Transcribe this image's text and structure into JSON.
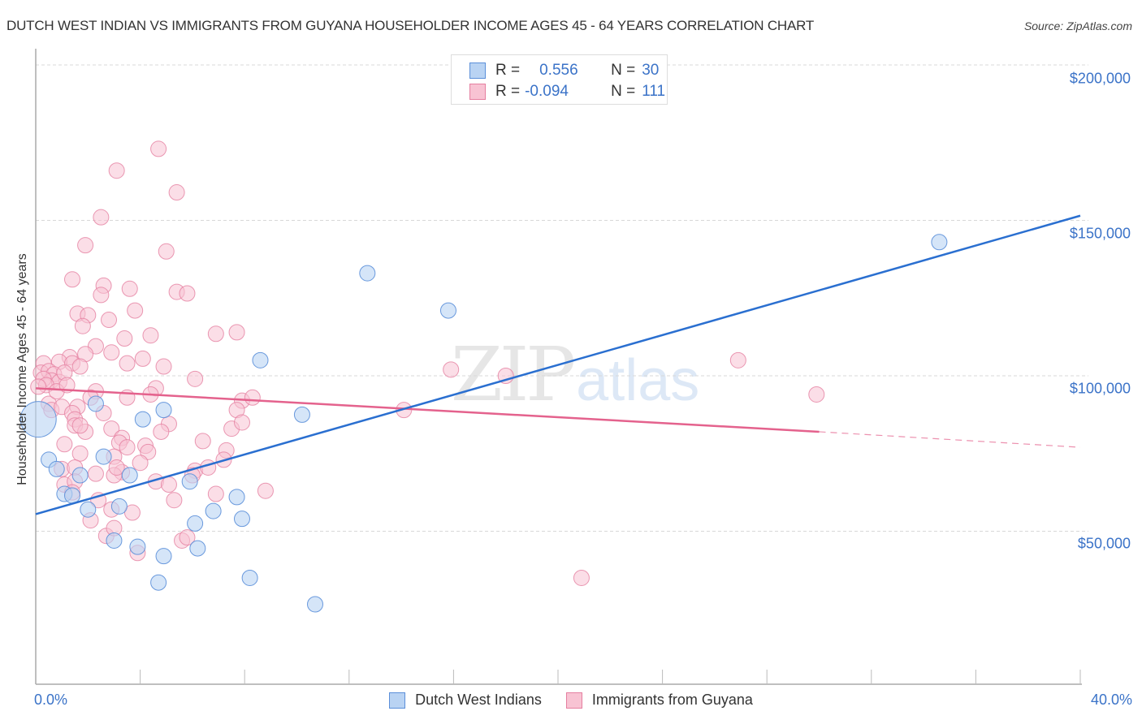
{
  "header": {
    "title": "DUTCH WEST INDIAN VS IMMIGRANTS FROM GUYANA HOUSEHOLDER INCOME AGES 45 - 64 YEARS CORRELATION CHART",
    "source": "Source: ZipAtlas.com"
  },
  "legend_top": {
    "rows": [
      {
        "r_label": "R =",
        "r_value": "0.556",
        "n_label": "N =",
        "n_value": "30"
      },
      {
        "r_label": "R =",
        "r_value": "-0.094",
        "n_label": "N =",
        "n_value": "111"
      }
    ]
  },
  "legend_bottom": {
    "items": [
      {
        "label": "Dutch West Indians"
      },
      {
        "label": "Immigrants from Guyana"
      }
    ]
  },
  "axes": {
    "ylabel": "Householder Income Ages 45 - 64 years",
    "yticks": [
      "$200,000",
      "$150,000",
      "$100,000",
      "$50,000"
    ],
    "xticks": [
      "0.0%",
      "40.0%"
    ]
  },
  "watermark": {
    "zip": "ZIP",
    "atlas": "atlas"
  },
  "colors": {
    "blue_fill": "#b9d3f3",
    "blue_stroke": "#5b8fd9",
    "blue_line": "#2a6fd0",
    "pink_fill": "#f8c3d3",
    "pink_stroke": "#e57fa0",
    "pink_line": "#e4628d",
    "tick_text": "#3b73c8"
  },
  "chart_data": {
    "type": "scatter",
    "title": "DUTCH WEST INDIAN VS IMMIGRANTS FROM GUYANA HOUSEHOLDER INCOME AGES 45 - 64 YEARS CORRELATION CHART",
    "xlabel": "",
    "ylabel": "Householder Income Ages 45 - 64 years",
    "xlim": [
      0,
      40
    ],
    "ylim": [
      0,
      210000
    ],
    "x_unit": "%",
    "yticks": [
      50000,
      100000,
      150000,
      200000
    ],
    "grid": true,
    "legend_position": "bottom",
    "series": [
      {
        "name": "Dutch West Indians",
        "R": 0.556,
        "N": 30,
        "trend": {
          "x": [
            0,
            40
          ],
          "y": [
            55500,
            151500
          ]
        },
        "points": [
          [
            0.1,
            86000
          ],
          [
            0.5,
            73000
          ],
          [
            0.8,
            70000
          ],
          [
            1.1,
            62000
          ],
          [
            1.4,
            61500
          ],
          [
            1.7,
            68000
          ],
          [
            2.0,
            57000
          ],
          [
            2.3,
            91000
          ],
          [
            2.6,
            74000
          ],
          [
            3.0,
            47000
          ],
          [
            3.2,
            58000
          ],
          [
            3.6,
            68000
          ],
          [
            3.9,
            45000
          ],
          [
            4.1,
            86000
          ],
          [
            4.9,
            89000
          ],
          [
            4.7,
            33500
          ],
          [
            4.9,
            42000
          ],
          [
            5.9,
            66000
          ],
          [
            6.1,
            52500
          ],
          [
            6.2,
            44500
          ],
          [
            6.8,
            56500
          ],
          [
            7.7,
            61000
          ],
          [
            7.9,
            54000
          ],
          [
            8.2,
            35000
          ],
          [
            8.6,
            105000
          ],
          [
            10.2,
            87500
          ],
          [
            10.7,
            26500
          ],
          [
            12.7,
            133000
          ],
          [
            15.8,
            121000
          ],
          [
            34.6,
            143000
          ]
        ]
      },
      {
        "name": "Immigrants from Guyana",
        "R": -0.094,
        "N": 111,
        "trend": {
          "x": [
            0,
            30
          ],
          "y": [
            96000,
            82000
          ]
        },
        "trend_dashed_extension": {
          "x": [
            30,
            40
          ],
          "y": [
            82000,
            77000
          ]
        },
        "points": [
          [
            4.7,
            173000
          ],
          [
            3.1,
            166000
          ],
          [
            5.4,
            159000
          ],
          [
            2.5,
            151000
          ],
          [
            1.9,
            142000
          ],
          [
            5.0,
            140000
          ],
          [
            1.4,
            131000
          ],
          [
            2.6,
            129000
          ],
          [
            3.6,
            128000
          ],
          [
            5.4,
            127000
          ],
          [
            5.8,
            126500
          ],
          [
            2.5,
            126000
          ],
          [
            3.8,
            121000
          ],
          [
            1.6,
            120000
          ],
          [
            2.0,
            119500
          ],
          [
            2.8,
            118000
          ],
          [
            1.8,
            116000
          ],
          [
            4.4,
            113000
          ],
          [
            6.9,
            113500
          ],
          [
            7.7,
            114000
          ],
          [
            3.4,
            112000
          ],
          [
            2.3,
            109500
          ],
          [
            1.9,
            107000
          ],
          [
            2.9,
            107500
          ],
          [
            1.3,
            106000
          ],
          [
            4.1,
            105500
          ],
          [
            3.5,
            104000
          ],
          [
            4.9,
            103000
          ],
          [
            0.3,
            104000
          ],
          [
            0.9,
            104500
          ],
          [
            1.4,
            104000
          ],
          [
            0.2,
            101000
          ],
          [
            0.5,
            101500
          ],
          [
            0.7,
            100500
          ],
          [
            0.6,
            98500
          ],
          [
            0.9,
            98000
          ],
          [
            0.3,
            99000
          ],
          [
            0.4,
            97000
          ],
          [
            1.1,
            101000
          ],
          [
            1.7,
            103000
          ],
          [
            0.1,
            96500
          ],
          [
            6.1,
            99000
          ],
          [
            4.6,
            96000
          ],
          [
            2.3,
            95000
          ],
          [
            4.4,
            94000
          ],
          [
            3.5,
            93000
          ],
          [
            2.1,
            93000
          ],
          [
            7.9,
            92000
          ],
          [
            0.5,
            91000
          ],
          [
            0.6,
            89000
          ],
          [
            1.0,
            90000
          ],
          [
            1.6,
            90000
          ],
          [
            1.4,
            88000
          ],
          [
            2.6,
            88000
          ],
          [
            7.7,
            89000
          ],
          [
            1.5,
            86000
          ],
          [
            1.5,
            84000
          ],
          [
            1.9,
            82000
          ],
          [
            1.7,
            84000
          ],
          [
            2.9,
            83000
          ],
          [
            5.1,
            84500
          ],
          [
            4.8,
            82000
          ],
          [
            7.5,
            83000
          ],
          [
            7.9,
            85000
          ],
          [
            3.3,
            80000
          ],
          [
            3.2,
            78500
          ],
          [
            3.5,
            77000
          ],
          [
            1.1,
            78000
          ],
          [
            4.2,
            77500
          ],
          [
            4.3,
            75500
          ],
          [
            6.4,
            79000
          ],
          [
            7.3,
            76000
          ],
          [
            7.2,
            73000
          ],
          [
            3.0,
            74000
          ],
          [
            4.0,
            72000
          ],
          [
            1.7,
            75000
          ],
          [
            1.0,
            70000
          ],
          [
            1.5,
            70500
          ],
          [
            3.3,
            69000
          ],
          [
            6.1,
            69500
          ],
          [
            2.3,
            68500
          ],
          [
            3.0,
            68000
          ],
          [
            4.6,
            66000
          ],
          [
            6.0,
            68000
          ],
          [
            1.1,
            65000
          ],
          [
            1.5,
            66000
          ],
          [
            5.1,
            65000
          ],
          [
            6.9,
            62000
          ],
          [
            8.8,
            63000
          ],
          [
            1.4,
            62500
          ],
          [
            5.3,
            60000
          ],
          [
            2.4,
            60000
          ],
          [
            2.1,
            53500
          ],
          [
            2.7,
            48500
          ],
          [
            3.7,
            56000
          ],
          [
            3.0,
            51000
          ],
          [
            3.9,
            43000
          ],
          [
            5.6,
            47000
          ],
          [
            14.1,
            89000
          ],
          [
            15.9,
            102000
          ],
          [
            18.0,
            100000
          ],
          [
            26.9,
            105000
          ],
          [
            29.9,
            94000
          ],
          [
            20.9,
            35000
          ],
          [
            5.8,
            48000
          ],
          [
            2.9,
            57000
          ],
          [
            0.8,
            95000
          ],
          [
            6.6,
            70500
          ],
          [
            3.1,
            70500
          ],
          [
            8.3,
            93000
          ],
          [
            1.2,
            97000
          ]
        ]
      }
    ]
  }
}
